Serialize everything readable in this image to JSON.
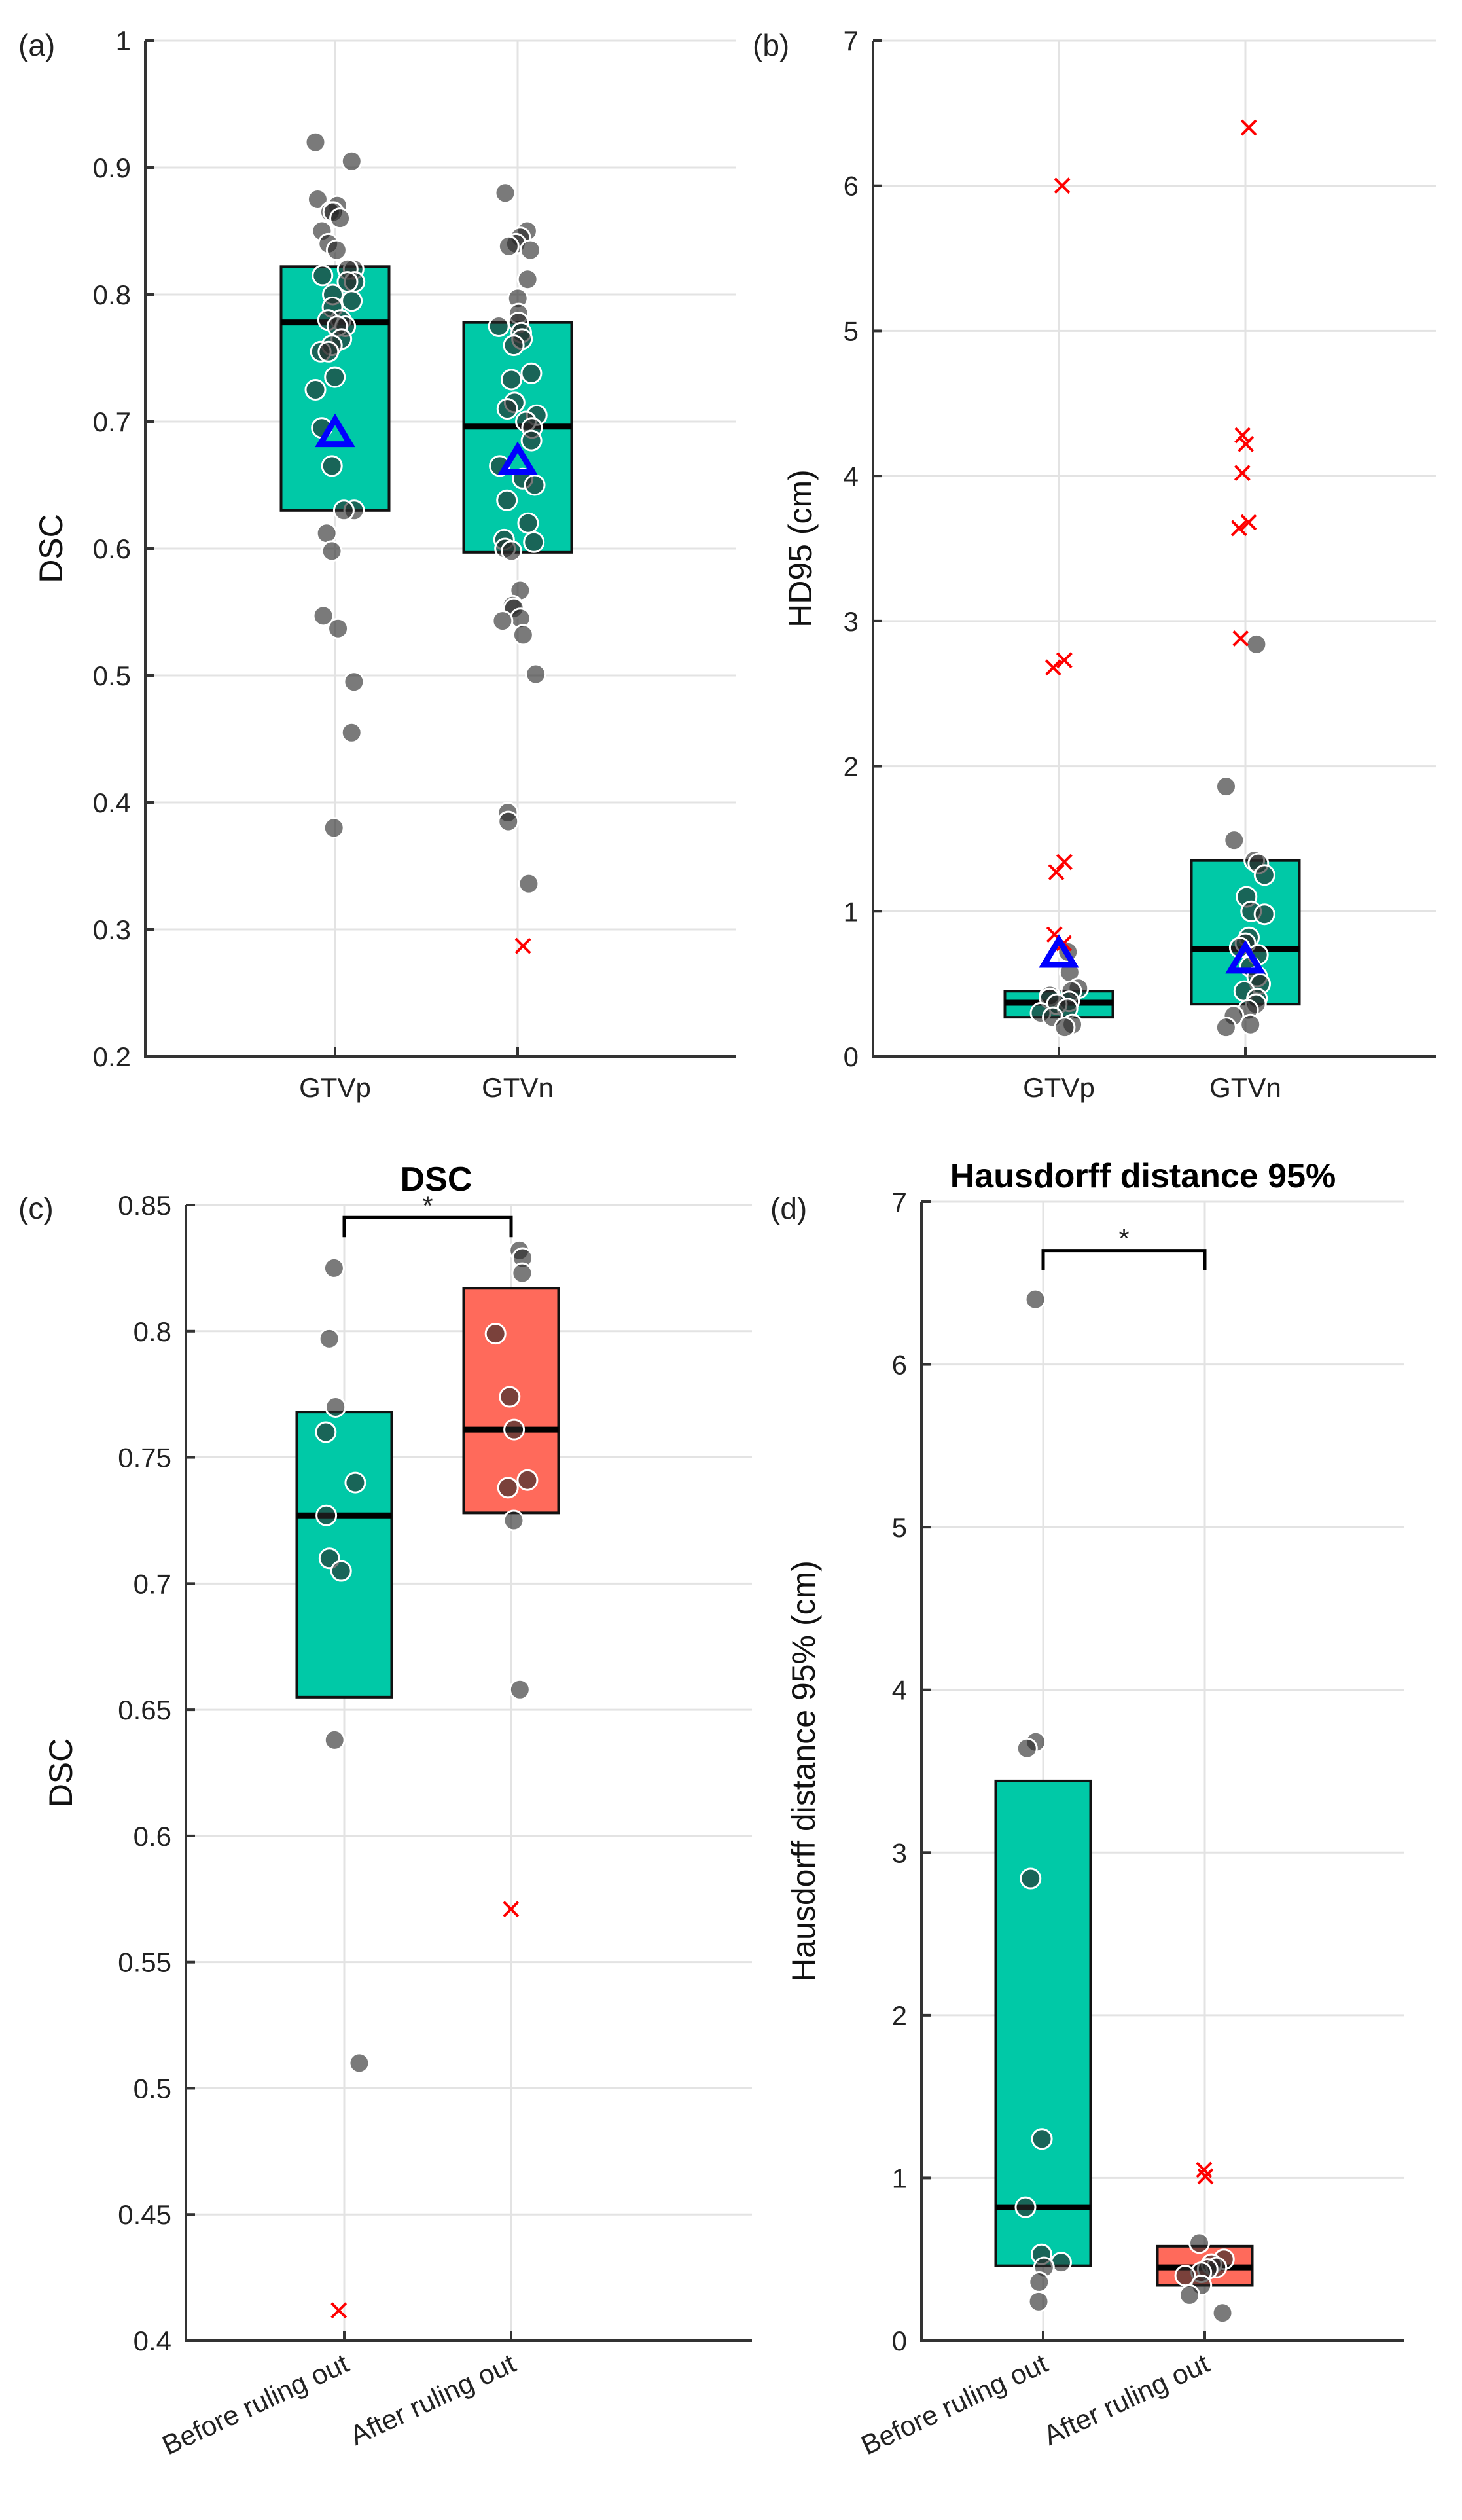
{
  "colors": {
    "teal": "#00C9A7",
    "salmon": "#FF6A5B",
    "point": "#5a5a5a",
    "outlier": "#FF0000",
    "mean": "#0000FF"
  },
  "chart_data": [
    {
      "panel": "(a)",
      "type": "box-swarm",
      "title": "",
      "ylabel": "DSC",
      "xlabel": "",
      "ylim": [
        0.2,
        1.0
      ],
      "yticks": [
        0.2,
        0.3,
        0.4,
        0.5,
        0.6,
        0.7,
        0.8,
        0.9,
        1
      ],
      "yticklabels": [
        "0.2",
        "0.3",
        "0.4",
        "0.5",
        "0.6",
        "0.7",
        "0.8",
        "0.9",
        "1"
      ],
      "grid": true,
      "categories": [
        "GTVp",
        "GTVn"
      ],
      "series": [
        {
          "name": "GTVp",
          "color": "teal",
          "box": {
            "q1": 0.63,
            "median": 0.778,
            "q3": 0.822
          },
          "mean": 0.69,
          "points": [
            0.92,
            0.905,
            0.875,
            0.87,
            0.865,
            0.865,
            0.86,
            0.85,
            0.84,
            0.835,
            0.82,
            0.82,
            0.815,
            0.81,
            0.81,
            0.8,
            0.795,
            0.79,
            0.78,
            0.78,
            0.775,
            0.775,
            0.765,
            0.76,
            0.755,
            0.755,
            0.735,
            0.725,
            0.695,
            0.665,
            0.63,
            0.63,
            0.612,
            0.598,
            0.547,
            0.537,
            0.495,
            0.455,
            0.38
          ],
          "outliers": []
        },
        {
          "name": "GTVn",
          "color": "teal",
          "box": {
            "q1": 0.597,
            "median": 0.696,
            "q3": 0.778
          },
          "mean": 0.668,
          "points": [
            0.88,
            0.85,
            0.845,
            0.84,
            0.838,
            0.835,
            0.812,
            0.797,
            0.785,
            0.778,
            0.775,
            0.77,
            0.765,
            0.76,
            0.738,
            0.733,
            0.715,
            0.71,
            0.705,
            0.7,
            0.695,
            0.685,
            0.665,
            0.655,
            0.65,
            0.638,
            0.62,
            0.607,
            0.605,
            0.6,
            0.598,
            0.567,
            0.555,
            0.553,
            0.545,
            0.543,
            0.532,
            0.501,
            0.392,
            0.385,
            0.336
          ],
          "outliers": [
            0.287
          ]
        }
      ]
    },
    {
      "panel": "(b)",
      "type": "box-swarm",
      "title": "",
      "ylabel": "HD95 (cm)",
      "xlabel": "",
      "ylim": [
        0,
        7
      ],
      "yticks": [
        0,
        1,
        2,
        3,
        4,
        5,
        6,
        7
      ],
      "yticklabels": [
        "0",
        "1",
        "2",
        "3",
        "4",
        "5",
        "6",
        "7"
      ],
      "grid": true,
      "categories": [
        "GTVp",
        "GTVn"
      ],
      "series": [
        {
          "name": "GTVp",
          "color": "teal",
          "box": {
            "q1": 0.27,
            "median": 0.37,
            "q3": 0.45
          },
          "mean": 0.7,
          "points": [
            0.72,
            0.58,
            0.47,
            0.45,
            0.42,
            0.4,
            0.38,
            0.36,
            0.33,
            0.3,
            0.27,
            0.22,
            0.2
          ],
          "outliers": [
            6.0,
            2.73,
            2.68,
            1.34,
            1.27,
            0.84,
            0.78
          ]
        },
        {
          "name": "GTVn",
          "color": "teal",
          "box": {
            "q1": 0.36,
            "median": 0.74,
            "q3": 1.35
          },
          "mean": 0.66,
          "points": [
            2.84,
            1.86,
            1.49,
            1.35,
            1.33,
            1.25,
            1.1,
            1.0,
            0.98,
            0.82,
            0.78,
            0.75,
            0.7,
            0.62,
            0.55,
            0.5,
            0.45,
            0.4,
            0.36,
            0.32,
            0.28,
            0.22,
            0.2
          ],
          "outliers": [
            6.4,
            4.28,
            4.22,
            4.02,
            3.68,
            3.64,
            2.88
          ]
        }
      ]
    },
    {
      "panel": "(c)",
      "type": "box-swarm",
      "title": "DSC",
      "ylabel": "DSC",
      "xlabel": "",
      "ylim": [
        0.4,
        0.85
      ],
      "yticks": [
        0.4,
        0.45,
        0.5,
        0.55,
        0.6,
        0.65,
        0.7,
        0.75,
        0.8,
        0.85
      ],
      "yticklabels": [
        "0.4",
        "0.45",
        "0.5",
        "0.55",
        "0.6",
        "0.65",
        "0.7",
        "0.75",
        "0.8",
        "0.85"
      ],
      "grid": true,
      "categories": [
        "Before ruling out",
        "After ruling out"
      ],
      "significance": {
        "label": "*",
        "level": 0.845
      },
      "series": [
        {
          "name": "Before ruling out",
          "color": "teal",
          "box": {
            "q1": 0.655,
            "median": 0.727,
            "q3": 0.768
          },
          "points": [
            0.825,
            0.797,
            0.77,
            0.76,
            0.74,
            0.727,
            0.71,
            0.705,
            0.638,
            0.51
          ],
          "outliers": [
            0.412
          ]
        },
        {
          "name": "After ruling out",
          "color": "salmon",
          "box": {
            "q1": 0.728,
            "median": 0.761,
            "q3": 0.817
          },
          "points": [
            0.832,
            0.829,
            0.823,
            0.799,
            0.774,
            0.761,
            0.741,
            0.738,
            0.725,
            0.658
          ],
          "outliers": [
            0.571
          ]
        }
      ]
    },
    {
      "panel": "(d)",
      "type": "box-swarm",
      "title": "Hausdorff distance 95%",
      "ylabel": "Hausdorff distance 95% (cm)",
      "xlabel": "",
      "ylim": [
        0,
        7
      ],
      "yticks": [
        0,
        1,
        2,
        3,
        4,
        5,
        6,
        7
      ],
      "yticklabels": [
        "0",
        "1",
        "2",
        "3",
        "4",
        "5",
        "6",
        "7"
      ],
      "grid": true,
      "categories": [
        "Before ruling out",
        "After ruling out"
      ],
      "significance": {
        "label": "*",
        "level": 6.7
      },
      "series": [
        {
          "name": "Before ruling out",
          "color": "teal",
          "box": {
            "q1": 0.46,
            "median": 0.82,
            "q3": 3.44
          },
          "points": [
            6.4,
            3.68,
            3.64,
            2.84,
            1.24,
            0.82,
            0.53,
            0.48,
            0.45,
            0.36,
            0.24
          ],
          "outliers": []
        },
        {
          "name": "After ruling out",
          "color": "salmon",
          "box": {
            "q1": 0.34,
            "median": 0.45,
            "q3": 0.58
          },
          "points": [
            0.6,
            0.5,
            0.47,
            0.45,
            0.44,
            0.42,
            0.4,
            0.34,
            0.28,
            0.17
          ],
          "outliers": [
            1.05,
            1.01
          ]
        }
      ]
    }
  ]
}
